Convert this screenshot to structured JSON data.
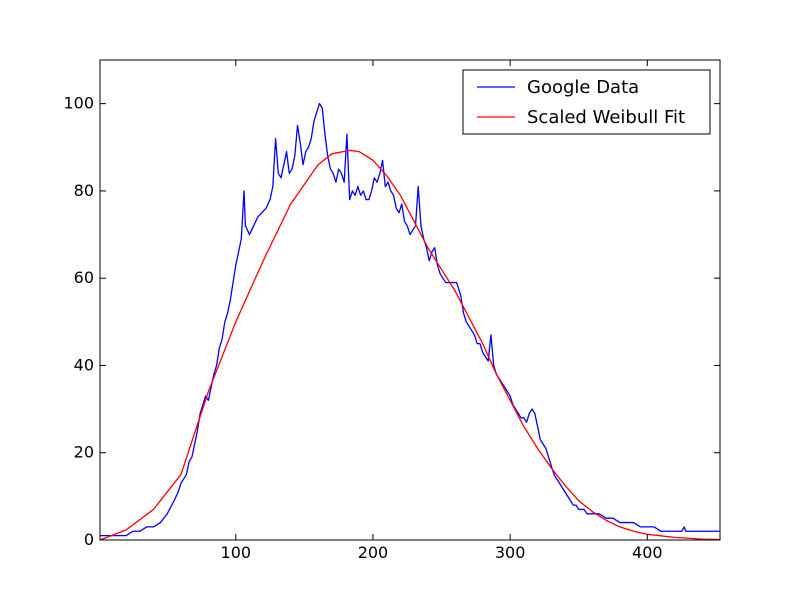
{
  "chart_data": {
    "type": "line",
    "title": "",
    "xlabel": "",
    "ylabel": "",
    "xlim": [
      1,
      453
    ],
    "ylim": [
      0,
      110
    ],
    "x_ticks": [
      100,
      200,
      300,
      400
    ],
    "y_ticks": [
      0,
      20,
      40,
      60,
      80,
      100
    ],
    "grid": false,
    "legend_position": "top-right",
    "series": [
      {
        "name": "Google Data",
        "color": "#0000ff",
        "points": [
          [
            1,
            1
          ],
          [
            10,
            1
          ],
          [
            20,
            1
          ],
          [
            25,
            2
          ],
          [
            30,
            2
          ],
          [
            35,
            3
          ],
          [
            40,
            3
          ],
          [
            45,
            4
          ],
          [
            50,
            6
          ],
          [
            55,
            9
          ],
          [
            58,
            11
          ],
          [
            60,
            13
          ],
          [
            62,
            14
          ],
          [
            64,
            15
          ],
          [
            66,
            18
          ],
          [
            68,
            19
          ],
          [
            70,
            22
          ],
          [
            72,
            25
          ],
          [
            74,
            29
          ],
          [
            76,
            31
          ],
          [
            78,
            33
          ],
          [
            80,
            32
          ],
          [
            82,
            35
          ],
          [
            84,
            38
          ],
          [
            86,
            40
          ],
          [
            88,
            44
          ],
          [
            90,
            46
          ],
          [
            92,
            50
          ],
          [
            94,
            52
          ],
          [
            96,
            55
          ],
          [
            98,
            59
          ],
          [
            100,
            63
          ],
          [
            102,
            66
          ],
          [
            104,
            69
          ],
          [
            106,
            80
          ],
          [
            107,
            72
          ],
          [
            110,
            70
          ],
          [
            113,
            72
          ],
          [
            116,
            74
          ],
          [
            119,
            75
          ],
          [
            122,
            76
          ],
          [
            125,
            78
          ],
          [
            127,
            81
          ],
          [
            129,
            92
          ],
          [
            131,
            84
          ],
          [
            133,
            83
          ],
          [
            135,
            86
          ],
          [
            137,
            89
          ],
          [
            139,
            84
          ],
          [
            141,
            85
          ],
          [
            143,
            88
          ],
          [
            145,
            95
          ],
          [
            147,
            91
          ],
          [
            149,
            86
          ],
          [
            151,
            89
          ],
          [
            153,
            90
          ],
          [
            155,
            92
          ],
          [
            157,
            96
          ],
          [
            159,
            98
          ],
          [
            161,
            100
          ],
          [
            163,
            99
          ],
          [
            165,
            93
          ],
          [
            167,
            88
          ],
          [
            169,
            85
          ],
          [
            171,
            84
          ],
          [
            173,
            82
          ],
          [
            175,
            85
          ],
          [
            177,
            84
          ],
          [
            179,
            82
          ],
          [
            181,
            93
          ],
          [
            183,
            78
          ],
          [
            185,
            80
          ],
          [
            187,
            79
          ],
          [
            189,
            81
          ],
          [
            191,
            79
          ],
          [
            193,
            80
          ],
          [
            195,
            78
          ],
          [
            197,
            78
          ],
          [
            199,
            80
          ],
          [
            201,
            83
          ],
          [
            203,
            82
          ],
          [
            205,
            84
          ],
          [
            207,
            87
          ],
          [
            209,
            81
          ],
          [
            211,
            82
          ],
          [
            213,
            80
          ],
          [
            215,
            79
          ],
          [
            217,
            76
          ],
          [
            219,
            75
          ],
          [
            221,
            77
          ],
          [
            223,
            73
          ],
          [
            225,
            72
          ],
          [
            227,
            70
          ],
          [
            229,
            71
          ],
          [
            231,
            72
          ],
          [
            233,
            81
          ],
          [
            235,
            72
          ],
          [
            237,
            69
          ],
          [
            239,
            67
          ],
          [
            241,
            64
          ],
          [
            243,
            66
          ],
          [
            245,
            67
          ],
          [
            247,
            63
          ],
          [
            249,
            61
          ],
          [
            251,
            60
          ],
          [
            253,
            59
          ],
          [
            255,
            59
          ],
          [
            258,
            59
          ],
          [
            261,
            59
          ],
          [
            264,
            56
          ],
          [
            266,
            52
          ],
          [
            268,
            50
          ],
          [
            270,
            49
          ],
          [
            272,
            48
          ],
          [
            274,
            47
          ],
          [
            276,
            45
          ],
          [
            278,
            45
          ],
          [
            280,
            43
          ],
          [
            282,
            42
          ],
          [
            284,
            41
          ],
          [
            286,
            47
          ],
          [
            288,
            40
          ],
          [
            290,
            38
          ],
          [
            292,
            37
          ],
          [
            294,
            36
          ],
          [
            296,
            35
          ],
          [
            298,
            34
          ],
          [
            300,
            33
          ],
          [
            302,
            31
          ],
          [
            304,
            30
          ],
          [
            306,
            29
          ],
          [
            308,
            28
          ],
          [
            310,
            28
          ],
          [
            312,
            27
          ],
          [
            314,
            29
          ],
          [
            316,
            30
          ],
          [
            318,
            29
          ],
          [
            320,
            26
          ],
          [
            322,
            23
          ],
          [
            324,
            22
          ],
          [
            326,
            21
          ],
          [
            328,
            19
          ],
          [
            330,
            17
          ],
          [
            332,
            15
          ],
          [
            334,
            14
          ],
          [
            336,
            13
          ],
          [
            338,
            12
          ],
          [
            340,
            11
          ],
          [
            342,
            10
          ],
          [
            344,
            9
          ],
          [
            346,
            8
          ],
          [
            348,
            8
          ],
          [
            350,
            7
          ],
          [
            352,
            7
          ],
          [
            354,
            7
          ],
          [
            356,
            6
          ],
          [
            360,
            6
          ],
          [
            365,
            6
          ],
          [
            370,
            5
          ],
          [
            375,
            5
          ],
          [
            380,
            4
          ],
          [
            385,
            4
          ],
          [
            390,
            4
          ],
          [
            395,
            3
          ],
          [
            400,
            3
          ],
          [
            405,
            3
          ],
          [
            410,
            2
          ],
          [
            415,
            2
          ],
          [
            420,
            2
          ],
          [
            425,
            2
          ],
          [
            427,
            3
          ],
          [
            428,
            2
          ],
          [
            435,
            2
          ],
          [
            440,
            2
          ],
          [
            445,
            2
          ],
          [
            453,
            2
          ]
        ]
      },
      {
        "name": "Scaled Weibull Fit",
        "color": "#ff0000",
        "points": [
          [
            1,
            0
          ],
          [
            20,
            2.3
          ],
          [
            40,
            7
          ],
          [
            60,
            15
          ],
          [
            80,
            34
          ],
          [
            100,
            50
          ],
          [
            120,
            64
          ],
          [
            140,
            77
          ],
          [
            160,
            86
          ],
          [
            170,
            88.5
          ],
          [
            183,
            89.3
          ],
          [
            190,
            89
          ],
          [
            200,
            87
          ],
          [
            210,
            83.5
          ],
          [
            220,
            79
          ],
          [
            230,
            73
          ],
          [
            240,
            67
          ],
          [
            250,
            62
          ],
          [
            260,
            57
          ],
          [
            270,
            51
          ],
          [
            280,
            45
          ],
          [
            290,
            38
          ],
          [
            300,
            32
          ],
          [
            310,
            26
          ],
          [
            320,
            21
          ],
          [
            330,
            16.5
          ],
          [
            340,
            12.5
          ],
          [
            350,
            9
          ],
          [
            360,
            6.5
          ],
          [
            370,
            4.5
          ],
          [
            380,
            3
          ],
          [
            390,
            2
          ],
          [
            400,
            1.3
          ],
          [
            420,
            0.6
          ],
          [
            440,
            0.2
          ],
          [
            453,
            0.1
          ]
        ]
      }
    ]
  }
}
